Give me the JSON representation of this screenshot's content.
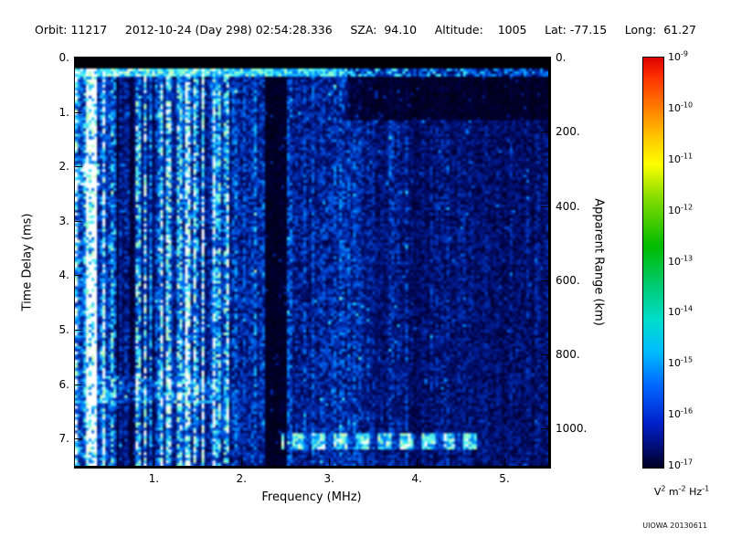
{
  "header": {
    "items": [
      "Orbit: 11217",
      "2012-10-24 (Day 298) 02:54:28.336",
      "SZA:  94.10",
      "Altitude:    1005",
      "Lat: -77.15",
      "Long:  61.27"
    ]
  },
  "footer": {
    "credit": "UIOWA 20130611"
  },
  "chart_data": {
    "type": "heatmap",
    "xlabel": "Frequency (MHz)",
    "ylabel": "Time Delay (ms)",
    "y2label": "Apparent Range (km)",
    "x_range": [
      0.1,
      5.5
    ],
    "y_range": [
      0,
      7.5
    ],
    "y2_range": [
      0,
      1100
    ],
    "x_ticks": {
      "values": [
        1,
        2,
        3,
        4,
        5
      ],
      "labels": [
        "1.",
        "2.",
        "3.",
        "4.",
        "5."
      ]
    },
    "y_ticks": {
      "values": [
        0,
        1,
        2,
        3,
        4,
        5,
        6,
        7
      ],
      "labels": [
        "0.",
        "1.",
        "2.",
        "3.",
        "4.",
        "5.",
        "6.",
        "7."
      ]
    },
    "y2_ticks": {
      "values": [
        0,
        200,
        400,
        600,
        800,
        1000
      ],
      "labels": [
        "0.",
        "200.",
        "400.",
        "600.",
        "800.",
        "1000."
      ]
    },
    "grid": false,
    "legend_position": "right-colorbar",
    "colorbar": {
      "scale_base": "10",
      "tick_exponents": [
        "-9",
        "-10",
        "-11",
        "-12",
        "-13",
        "-14",
        "-15",
        "-16",
        "-17"
      ],
      "max": "1e-9",
      "min": "1e-17",
      "unit_parts": [
        {
          "t": "V",
          "s": "2"
        },
        {
          "t": "m",
          "s": "-2"
        },
        {
          "t": "Hz",
          "s": "-1"
        }
      ],
      "gradient": [
        [
          "#dd0000",
          0
        ],
        [
          "#ff3300",
          5
        ],
        [
          "#ff6600",
          10
        ],
        [
          "#ffcc00",
          20
        ],
        [
          "#ffff00",
          26
        ],
        [
          "#88dd00",
          34
        ],
        [
          "#00bb00",
          46
        ],
        [
          "#00cc77",
          56
        ],
        [
          "#00ddcc",
          64
        ],
        [
          "#00bbff",
          72
        ],
        [
          "#0066ff",
          80
        ],
        [
          "#0022cc",
          89
        ],
        [
          "#000d77",
          95
        ],
        [
          "#000022",
          100
        ]
      ]
    },
    "spectrogram": {
      "seed": 20130611,
      "grid": {
        "cols": 172,
        "rows": 150
      },
      "black_top_ms": 0.18,
      "surface_line": {
        "t0": 0.18,
        "t1": 0.35,
        "intensity": 0.95
      },
      "streak_freq_max": 1.9,
      "freq_bands": [
        {
          "f0": 0.1,
          "f1": 0.55,
          "base": 0.66
        },
        {
          "f0": 0.55,
          "f1": 1.9,
          "base": 0.5
        },
        {
          "f0": 1.9,
          "f1": 2.28,
          "base": 0.37
        },
        {
          "f0": 2.28,
          "f1": 2.52,
          "base": 0.08
        },
        {
          "f0": 2.52,
          "f1": 3.3,
          "base": 0.33
        },
        {
          "f0": 3.3,
          "f1": 3.9,
          "base": 0.28
        },
        {
          "f0": 3.9,
          "f1": 4.1,
          "base": 0.2
        },
        {
          "f0": 4.1,
          "f1": 5.5,
          "base": 0.24
        }
      ],
      "dark_topright": {
        "f0": 3.2,
        "t0": 0.35,
        "t1": 1.15,
        "factor": 0.35
      },
      "echo_line": {
        "t0": 6.92,
        "t1": 7.18,
        "f0": 2.45,
        "f1": 4.75,
        "intensity": 0.95
      },
      "blobs": [
        {
          "f0": 0.1,
          "f1": 0.38,
          "t0": 1.95,
          "t1": 2.35,
          "boost": 0.4
        },
        {
          "f0": 0.25,
          "f1": 1.7,
          "t0": 5.85,
          "t1": 6.35,
          "boost": 0.2
        }
      ],
      "colormap": [
        [
          0,
          [
            0,
            0,
            6
          ]
        ],
        [
          0.1,
          [
            0,
            0,
            55
          ]
        ],
        [
          0.28,
          [
            0,
            25,
            140
          ]
        ],
        [
          0.45,
          [
            0,
            80,
            225
          ]
        ],
        [
          0.6,
          [
            0,
            150,
            255
          ]
        ],
        [
          0.75,
          [
            60,
            235,
            255
          ]
        ],
        [
          0.85,
          [
            130,
            255,
            215
          ]
        ],
        [
          0.93,
          [
            205,
            255,
            175
          ]
        ],
        [
          1,
          [
            255,
            255,
            255
          ]
        ]
      ]
    }
  }
}
